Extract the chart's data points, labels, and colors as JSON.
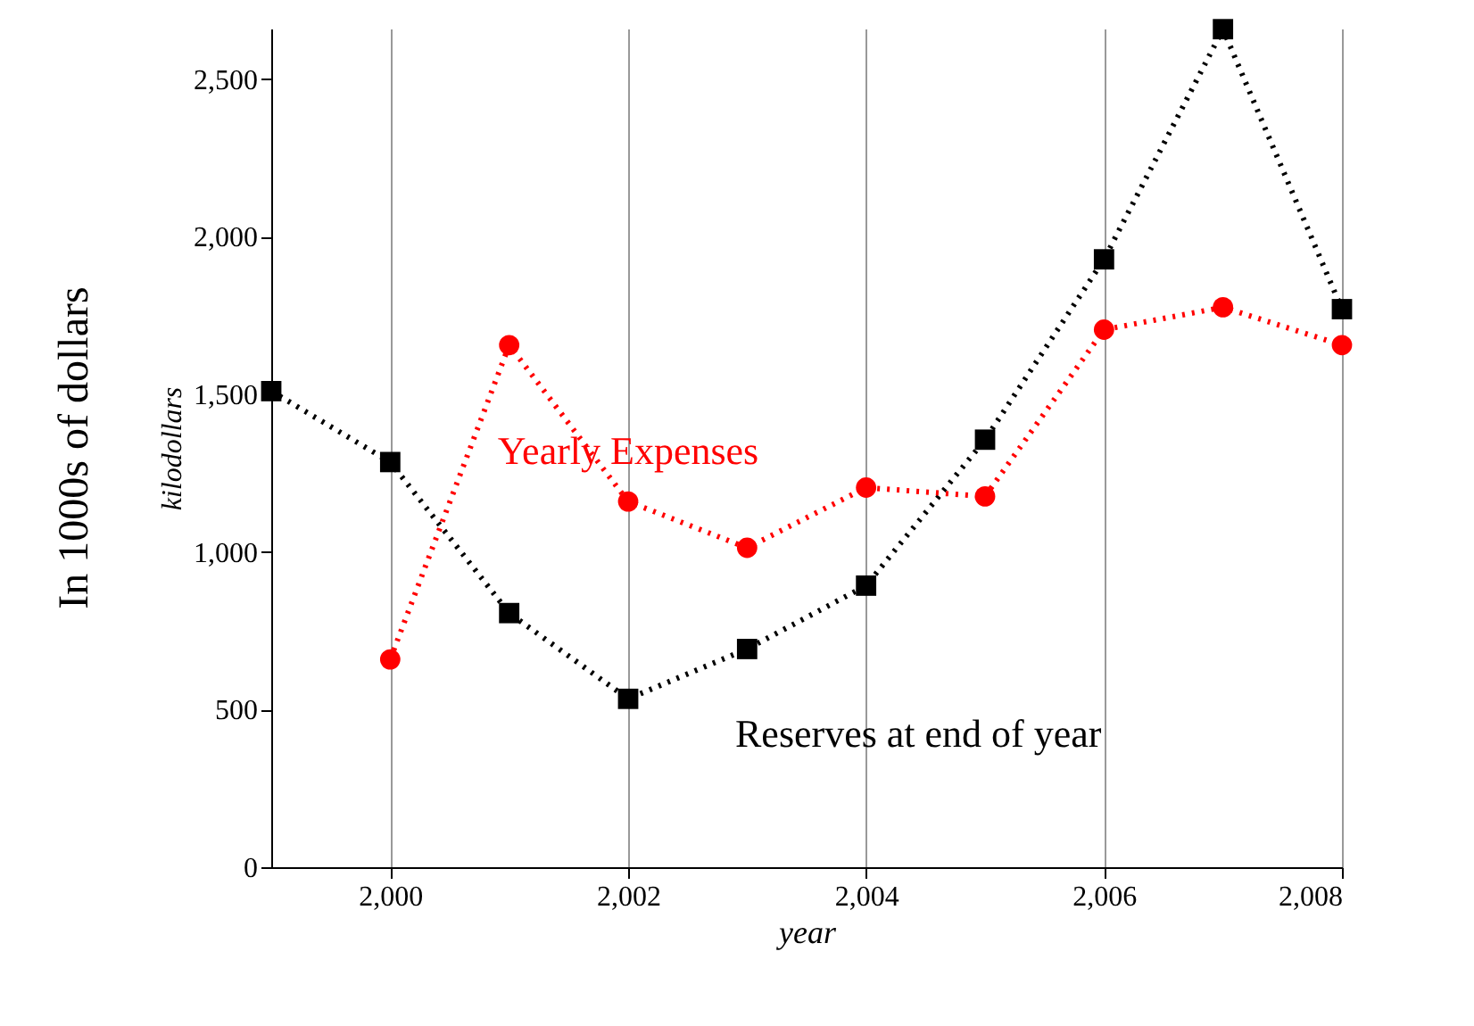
{
  "chart_data": {
    "type": "line",
    "xlabel": "year",
    "ylabel": "kilodollars",
    "annotations": [
      "In 1000s of dollars"
    ],
    "x": [
      1999,
      2000,
      2001,
      2002,
      2003,
      2004,
      2005,
      2006,
      2007,
      2008
    ],
    "series": [
      {
        "name": "Reserves at end of year",
        "color": "#000000",
        "marker": "square",
        "values": [
          1510,
          1285,
          806,
          534,
          692,
          893,
          1356,
          1928,
          2658,
          1770
        ]
      },
      {
        "name": "Yearly Expenses",
        "color": "#ff0000",
        "marker": "circle",
        "values": [
          null,
          659,
          1656,
          1160,
          1013,
          1204,
          1176,
          1705,
          1776,
          1656
        ]
      }
    ],
    "xlim": [
      1999,
      2008
    ],
    "xticks": [
      {
        "value": 2000,
        "label": "2,000"
      },
      {
        "value": 2002,
        "label": "2,002"
      },
      {
        "value": 2004,
        "label": "2,004"
      },
      {
        "value": 2006,
        "label": "2,006"
      },
      {
        "value": 2008,
        "label": "2,008"
      }
    ],
    "ylim": [
      0,
      2660
    ],
    "yticks": [
      0,
      {
        "value": 500,
        "label": "500"
      },
      {
        "value": 1000,
        "label": "1,000"
      },
      {
        "value": 1500,
        "label": "1,500"
      },
      {
        "value": 2000,
        "label": "2,000"
      },
      {
        "value": 2500,
        "label": "2,500"
      }
    ],
    "grid": "x",
    "line_style": "dotted",
    "legend": false
  }
}
